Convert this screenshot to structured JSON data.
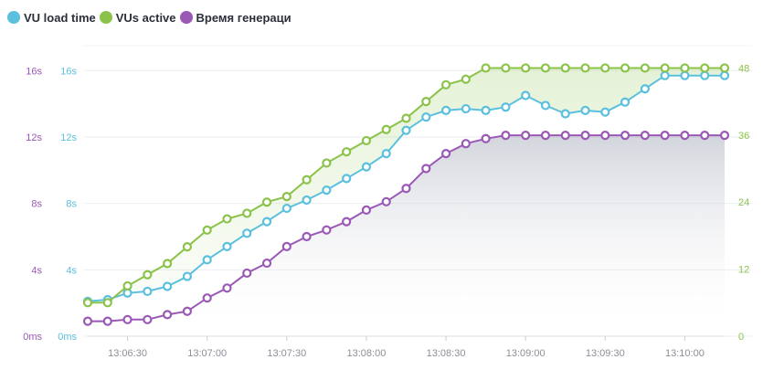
{
  "legend": [
    {
      "name": "VU load time",
      "color": "#5bc0de"
    },
    {
      "name": "VUs active",
      "color": "#8bc34a"
    },
    {
      "name": "Время генераци",
      "color": "#9b59b6"
    }
  ],
  "chart_data": {
    "type": "line",
    "x": [
      "13:06:15",
      "13:06:22",
      "13:06:30",
      "13:06:37",
      "13:06:45",
      "13:06:52",
      "13:07:00",
      "13:07:07",
      "13:07:15",
      "13:07:22",
      "13:07:30",
      "13:07:37",
      "13:07:45",
      "13:07:52",
      "13:08:00",
      "13:08:07",
      "13:08:15",
      "13:08:22",
      "13:08:30",
      "13:08:37",
      "13:08:45",
      "13:08:52",
      "13:09:00",
      "13:09:07",
      "13:09:15",
      "13:09:22",
      "13:09:30",
      "13:09:37",
      "13:09:45",
      "13:09:52",
      "13:10:00",
      "13:10:07",
      "13:10:09"
    ],
    "x_ticks": [
      "13:06:30",
      "13:07:00",
      "13:07:30",
      "13:08:00",
      "13:08:30",
      "13:09:00",
      "13:09:30",
      "13:10:00"
    ],
    "series": [
      {
        "name": "VU load time",
        "axis": "left-blue",
        "color": "#5bc0de",
        "values": [
          2.1,
          2.2,
          2.6,
          2.7,
          3.0,
          3.6,
          4.6,
          5.4,
          6.2,
          6.9,
          7.7,
          8.2,
          8.8,
          9.5,
          10.2,
          11.0,
          12.4,
          13.2,
          13.6,
          13.7,
          13.6,
          13.8,
          14.5,
          13.9,
          13.4,
          13.6,
          13.5,
          14.1,
          14.9,
          15.7,
          15.7,
          15.7,
          15.7
        ]
      },
      {
        "name": "VUs active",
        "axis": "right-green",
        "color": "#8bc34a",
        "values": [
          6,
          6,
          9,
          11,
          13,
          16,
          19,
          21,
          22,
          24,
          25,
          28,
          31,
          33,
          35,
          37,
          39,
          42,
          45,
          46,
          48,
          48,
          48,
          48,
          48,
          48,
          48,
          48,
          48,
          48,
          48,
          48,
          48
        ]
      },
      {
        "name": "Время генераци",
        "axis": "left-purple",
        "color": "#9b59b6",
        "values": [
          0.9,
          0.9,
          1.0,
          1.0,
          1.3,
          1.5,
          2.3,
          2.9,
          3.8,
          4.4,
          5.4,
          6.0,
          6.4,
          6.9,
          7.6,
          8.1,
          8.9,
          10.1,
          11.0,
          11.6,
          11.9,
          12.1,
          12.1,
          12.1,
          12.1,
          12.1,
          12.1,
          12.1,
          12.1,
          12.1,
          12.1,
          12.1,
          12.1
        ]
      }
    ],
    "y_left_purple": {
      "ticks": [
        "0ms",
        "4s",
        "8s",
        "12s",
        "16s"
      ],
      "color": "#9b59b6"
    },
    "y_left_blue": {
      "ticks": [
        "0ms",
        "4s",
        "8s",
        "12s",
        "16s"
      ],
      "color": "#5bc0de"
    },
    "y_right": {
      "ticks": [
        "0",
        "12",
        "24",
        "36",
        "48"
      ],
      "color": "#8bc34a"
    },
    "ylim_seconds": [
      0,
      17.5
    ],
    "ylim_vus": [
      0,
      52
    ],
    "grid": true
  }
}
